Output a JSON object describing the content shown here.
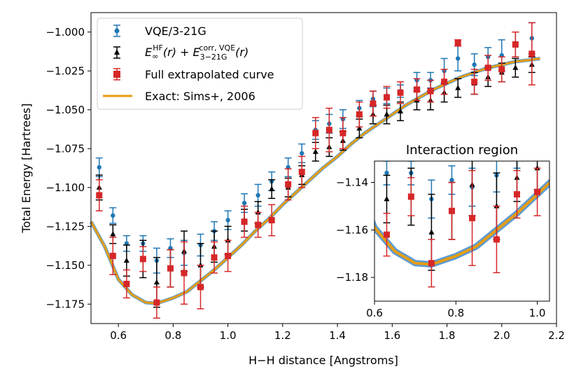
{
  "chart_data": [
    {
      "type": "scatter",
      "xlabel": "H−H distance [Angstroms]",
      "ylabel": "Total Energy [Hartrees]",
      "xlim": [
        0.5,
        2.2
      ],
      "ylim": [
        -1.1875,
        -0.9875
      ],
      "x_ticks": [
        "0.6",
        "0.8",
        "1.0",
        "1.2",
        "1.4",
        "1.6",
        "1.8",
        "2.0",
        "2.2"
      ],
      "y_ticks": [
        "−1.000",
        "−1.025",
        "−1.050",
        "−1.075",
        "−1.100",
        "−1.125",
        "−1.150",
        "−1.175"
      ],
      "legend_location": "top-left",
      "legend": [
        {
          "key": "vqe",
          "label": "VQE/3-21G"
        },
        {
          "key": "hf",
          "label_main": "E",
          "label_sub1": "∞",
          "label_sup1": "HF",
          "label_mid": "(r) + E",
          "label_sub2": "3−21G",
          "label_sup2": "corr, VQE",
          "label_end": "(r)"
        },
        {
          "key": "full",
          "label": "Full extrapolated curve"
        },
        {
          "key": "exact",
          "label": "Exact: Sims+, 2006"
        }
      ],
      "series": [
        {
          "name": "VQE/3-21G",
          "color": "#1f77b4",
          "marker": "circle",
          "points": [
            [
              0.53,
              -1.087,
              0.006
            ],
            [
              0.58,
              -1.118,
              0.005
            ],
            [
              0.63,
              -1.136,
              0.005
            ],
            [
              0.69,
              -1.136,
              0.005
            ],
            [
              0.74,
              -1.147,
              0.008
            ],
            [
              0.79,
              -1.139,
              0.006
            ],
            [
              0.84,
              -1.142,
              0.008
            ],
            [
              0.9,
              -1.137,
              0.007
            ],
            [
              0.95,
              -1.128,
              0.006
            ],
            [
              1.0,
              -1.121,
              0.006
            ],
            [
              1.06,
              -1.11,
              0.006
            ],
            [
              1.11,
              -1.105,
              0.007
            ],
            [
              1.16,
              -1.096,
              0.006
            ],
            [
              1.22,
              -1.087,
              0.006
            ],
            [
              1.27,
              -1.078,
              0.006
            ],
            [
              1.32,
              -1.063,
              0.006
            ],
            [
              1.37,
              -1.059,
              0.006
            ],
            [
              1.42,
              -1.056,
              0.006
            ],
            [
              1.48,
              -1.049,
              0.005
            ],
            [
              1.53,
              -1.043,
              0.005
            ],
            [
              1.58,
              -1.041,
              0.005
            ],
            [
              1.63,
              -1.038,
              0.004
            ],
            [
              1.69,
              -1.031,
              0.005
            ],
            [
              1.74,
              -1.031,
              0.005
            ],
            [
              1.79,
              -1.025,
              0.008
            ],
            [
              1.84,
              -1.017,
              0.008
            ],
            [
              1.9,
              -1.021,
              0.007
            ],
            [
              1.95,
              -1.016,
              0.006
            ],
            [
              2.0,
              -1.015,
              0.01
            ],
            [
              2.05,
              -1.008,
              0.008
            ],
            [
              2.11,
              -1.004,
              0.01
            ]
          ]
        },
        {
          "name": "HF + corr (VQE)",
          "color": "#000000",
          "marker": "triangle",
          "points": [
            [
              0.53,
              -1.1,
              0.008
            ],
            [
              0.58,
              -1.13,
              0.006
            ],
            [
              0.63,
              -1.147,
              0.01
            ],
            [
              0.69,
              -1.146,
              0.012
            ],
            [
              0.74,
              -1.161,
              0.016
            ],
            [
              0.79,
              -1.152,
              0.012
            ],
            [
              0.84,
              -1.141,
              0.013
            ],
            [
              0.9,
              -1.15,
              0.014
            ],
            [
              0.95,
              -1.138,
              0.01
            ],
            [
              1.0,
              -1.134,
              0.009
            ],
            [
              1.06,
              -1.121,
              0.007
            ],
            [
              1.11,
              -1.116,
              0.007
            ],
            [
              1.16,
              -1.101,
              0.006
            ],
            [
              1.22,
              -1.1,
              0.006
            ],
            [
              1.27,
              -1.092,
              0.006
            ],
            [
              1.32,
              -1.077,
              0.006
            ],
            [
              1.37,
              -1.074,
              0.006
            ],
            [
              1.42,
              -1.07,
              0.006
            ],
            [
              1.48,
              -1.062,
              0.006
            ],
            [
              1.53,
              -1.053,
              0.006
            ],
            [
              1.58,
              -1.053,
              0.006
            ],
            [
              1.63,
              -1.051,
              0.006
            ],
            [
              1.69,
              -1.044,
              0.006
            ],
            [
              1.74,
              -1.044,
              0.006
            ],
            [
              1.79,
              -1.039,
              0.006
            ],
            [
              1.84,
              -1.036,
              0.006
            ],
            [
              1.9,
              -1.033,
              0.007
            ],
            [
              1.95,
              -1.029,
              0.006
            ],
            [
              2.0,
              -1.026,
              0.006
            ],
            [
              2.05,
              -1.023,
              0.006
            ],
            [
              2.11,
              -1.021,
              0.005
            ]
          ]
        },
        {
          "name": "Full extrapolated curve",
          "color": "#d62728",
          "marker": "square",
          "points": [
            [
              0.53,
              -1.105,
              0.01
            ],
            [
              0.58,
              -1.144,
              0.012
            ],
            [
              0.63,
              -1.162,
              0.009
            ],
            [
              0.69,
              -1.146,
              0.008
            ],
            [
              0.74,
              -1.174,
              0.01
            ],
            [
              0.79,
              -1.152,
              0.012
            ],
            [
              0.84,
              -1.155,
              0.02
            ],
            [
              0.9,
              -1.164,
              0.014
            ],
            [
              0.95,
              -1.145,
              0.01
            ],
            [
              1.0,
              -1.144,
              0.01
            ],
            [
              1.06,
              -1.122,
              0.01
            ],
            [
              1.11,
              -1.124,
              0.008
            ],
            [
              1.16,
              -1.121,
              0.01
            ],
            [
              1.22,
              -1.098,
              0.01
            ],
            [
              1.27,
              -1.09,
              0.01
            ],
            [
              1.32,
              -1.065,
              0.01
            ],
            [
              1.37,
              -1.063,
              0.014
            ],
            [
              1.42,
              -1.065,
              0.01
            ],
            [
              1.48,
              -1.053,
              0.008
            ],
            [
              1.53,
              -1.046,
              0.008
            ],
            [
              1.58,
              -1.042,
              0.007
            ],
            [
              1.63,
              -1.039,
              0.007
            ],
            [
              1.69,
              -1.037,
              0.007
            ],
            [
              1.74,
              -1.038,
              0.007
            ],
            [
              1.79,
              -1.032,
              0.008
            ],
            [
              1.84,
              -1.007,
              0.002
            ],
            [
              1.9,
              -1.032,
              0.008
            ],
            [
              1.95,
              -1.023,
              0.008
            ],
            [
              2.0,
              -1.024,
              0.008
            ],
            [
              2.05,
              -1.008,
              0.008
            ],
            [
              2.11,
              -1.014,
              0.02
            ]
          ]
        },
        {
          "name": "Exact: Sims+, 2006",
          "color": "#e69d12",
          "marker": "line",
          "points": [
            [
              0.5,
              -1.122
            ],
            [
              0.55,
              -1.138
            ],
            [
              0.6,
              -1.159
            ],
            [
              0.65,
              -1.169
            ],
            [
              0.7,
              -1.174
            ],
            [
              0.74,
              -1.1745
            ],
            [
              0.8,
              -1.171
            ],
            [
              0.85,
              -1.167
            ],
            [
              0.9,
              -1.16
            ],
            [
              0.95,
              -1.153
            ],
            [
              1.0,
              -1.145
            ],
            [
              1.05,
              -1.137
            ],
            [
              1.1,
              -1.128
            ],
            [
              1.15,
              -1.12
            ],
            [
              1.2,
              -1.111
            ],
            [
              1.25,
              -1.103
            ],
            [
              1.3,
              -1.095
            ],
            [
              1.35,
              -1.087
            ],
            [
              1.4,
              -1.08
            ],
            [
              1.45,
              -1.072
            ],
            [
              1.5,
              -1.065
            ],
            [
              1.55,
              -1.059
            ],
            [
              1.6,
              -1.053
            ],
            [
              1.65,
              -1.047
            ],
            [
              1.7,
              -1.042
            ],
            [
              1.75,
              -1.037
            ],
            [
              1.8,
              -1.033
            ],
            [
              1.85,
              -1.029
            ],
            [
              1.9,
              -1.026
            ],
            [
              1.95,
              -1.023
            ],
            [
              2.0,
              -1.021
            ],
            [
              2.05,
              -1.019
            ],
            [
              2.1,
              -1.018
            ],
            [
              2.14,
              -1.017
            ]
          ]
        }
      ]
    },
    {
      "type": "scatter",
      "title": "Interaction region",
      "xlim": [
        0.6,
        1.03
      ],
      "ylim": [
        -1.19,
        -1.131
      ],
      "x_ticks": [
        "0.6",
        "0.8",
        "1.0"
      ],
      "y_ticks": [
        "−1.14",
        "−1.16",
        "−1.18"
      ],
      "note": "zoom of the same series for x in [0.6, 1.03]"
    }
  ]
}
